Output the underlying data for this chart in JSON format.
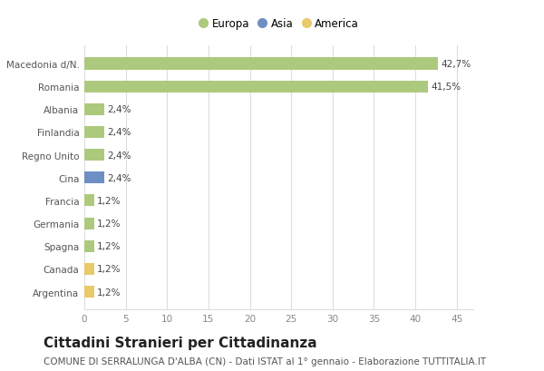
{
  "categories": [
    "Argentina",
    "Canada",
    "Spagna",
    "Germania",
    "Francia",
    "Cina",
    "Regno Unito",
    "Finlandia",
    "Albania",
    "Romania",
    "Macedonia d/N."
  ],
  "values": [
    1.2,
    1.2,
    1.2,
    1.2,
    1.2,
    2.4,
    2.4,
    2.4,
    2.4,
    41.5,
    42.7
  ],
  "labels": [
    "1,2%",
    "1,2%",
    "1,2%",
    "1,2%",
    "1,2%",
    "2,4%",
    "2,4%",
    "2,4%",
    "2,4%",
    "41,5%",
    "42,7%"
  ],
  "colors": [
    "#e8c96b",
    "#e8c96b",
    "#adc97e",
    "#adc97e",
    "#adc97e",
    "#6e8fc4",
    "#adc97e",
    "#adc97e",
    "#adc97e",
    "#adc97e",
    "#adc97e"
  ],
  "legend": [
    {
      "label": "Europa",
      "color": "#adc97e"
    },
    {
      "label": "Asia",
      "color": "#6e8fc4"
    },
    {
      "label": "America",
      "color": "#e8c96b"
    }
  ],
  "title": "Cittadini Stranieri per Cittadinanza",
  "subtitle": "COMUNE DI SERRALUNGA D'ALBA (CN) - Dati ISTAT al 1° gennaio - Elaborazione TUTTITALIA.IT",
  "xlim": [
    0,
    47
  ],
  "xticks": [
    0,
    5,
    10,
    15,
    20,
    25,
    30,
    35,
    40,
    45
  ],
  "background_color": "#ffffff",
  "grid_color": "#dddddd",
  "bar_height": 0.52,
  "title_fontsize": 11,
  "subtitle_fontsize": 7.5,
  "label_fontsize": 7.5,
  "tick_fontsize": 7.5,
  "legend_fontsize": 8.5
}
